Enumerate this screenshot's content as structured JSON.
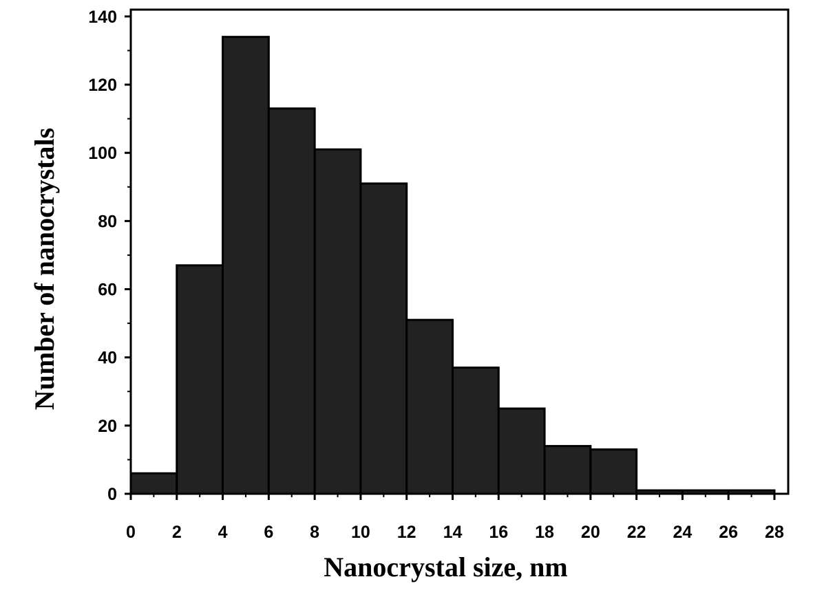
{
  "chart_data": {
    "type": "bar",
    "title": "",
    "xlabel": "Nanocrystal size, nm",
    "ylabel": "Number of nanocrystals",
    "xlim": [
      0,
      28.6
    ],
    "ylim": [
      0,
      142
    ],
    "x_ticks": [
      "0",
      "2",
      "4",
      "6",
      "8",
      "10",
      "12",
      "14",
      "16",
      "18",
      "20",
      "22",
      "24",
      "26",
      "28"
    ],
    "y_ticks": [
      "0",
      "20",
      "40",
      "60",
      "80",
      "100",
      "120",
      "140"
    ],
    "bins": [
      {
        "start": 0,
        "end": 2,
        "value": 6
      },
      {
        "start": 2,
        "end": 4,
        "value": 67
      },
      {
        "start": 4,
        "end": 6,
        "value": 134
      },
      {
        "start": 6,
        "end": 8,
        "value": 113
      },
      {
        "start": 8,
        "end": 10,
        "value": 101
      },
      {
        "start": 10,
        "end": 12,
        "value": 91
      },
      {
        "start": 12,
        "end": 14,
        "value": 51
      },
      {
        "start": 14,
        "end": 16,
        "value": 37
      },
      {
        "start": 16,
        "end": 18,
        "value": 25
      },
      {
        "start": 18,
        "end": 20,
        "value": 14
      },
      {
        "start": 20,
        "end": 22,
        "value": 13
      },
      {
        "start": 22,
        "end": 24,
        "value": 1
      },
      {
        "start": 24,
        "end": 26,
        "value": 1
      },
      {
        "start": 26,
        "end": 28,
        "value": 1
      }
    ],
    "bar_color": "#222222",
    "grid": false,
    "legend": "none"
  }
}
